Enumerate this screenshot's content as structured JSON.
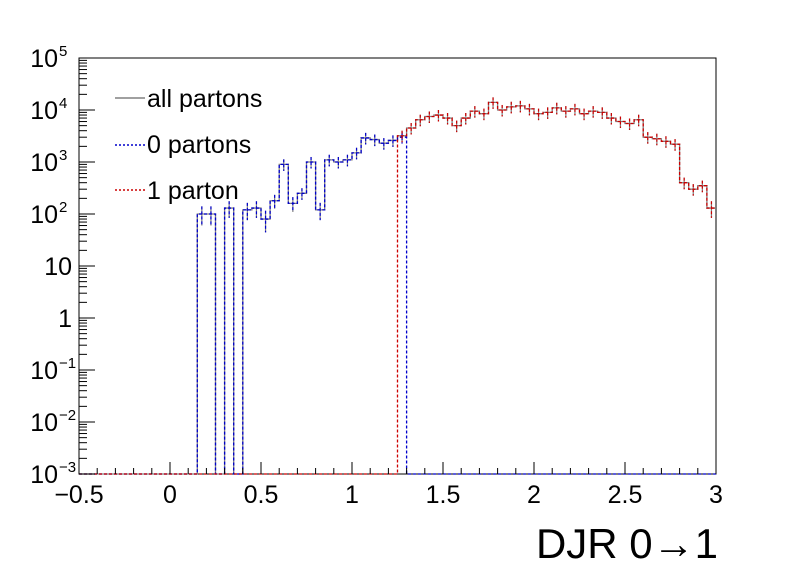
{
  "chart_data": {
    "type": "histogram",
    "xlabel": "DJR 0→1",
    "ylabel": "",
    "xlim": [
      -0.5,
      3.0
    ],
    "ylim": [
      0.001,
      100000
    ],
    "yscale": "log",
    "bin_width": 0.05,
    "floor_value": 0.001,
    "x_ticks": [
      "−0.5",
      "0",
      "0.5",
      "1",
      "1.5",
      "2",
      "2.5",
      "3"
    ],
    "x_tick_values": [
      -0.5,
      0,
      0.5,
      1,
      1.5,
      2,
      2.5,
      3
    ],
    "y_ticks": [
      {
        "value": 100000,
        "base": "10",
        "exp": "5"
      },
      {
        "value": 10000,
        "base": "10",
        "exp": "4"
      },
      {
        "value": 1000,
        "base": "10",
        "exp": "3"
      },
      {
        "value": 100,
        "base": "10",
        "exp": "2"
      },
      {
        "value": 10,
        "base": "10",
        "exp": ""
      },
      {
        "value": 1,
        "base": "1",
        "exp": ""
      },
      {
        "value": 0.1,
        "base": "10",
        "exp": "−1"
      },
      {
        "value": 0.01,
        "base": "10",
        "exp": "−2"
      },
      {
        "value": 0.001,
        "base": "10",
        "exp": "−3"
      }
    ],
    "grid": false,
    "legend_position": "top-left",
    "series": [
      {
        "name": "all partons",
        "color": "#808080",
        "style": "solid",
        "bins": [
          [
            0.15,
            100
          ],
          [
            0.2,
            100
          ],
          [
            0.3,
            130
          ],
          [
            0.4,
            120
          ],
          [
            0.45,
            130
          ],
          [
            0.5,
            80
          ],
          [
            0.55,
            180
          ],
          [
            0.6,
            900
          ],
          [
            0.65,
            160
          ],
          [
            0.7,
            250
          ],
          [
            0.75,
            1000
          ],
          [
            0.8,
            120
          ],
          [
            0.85,
            1100
          ],
          [
            0.9,
            1000
          ],
          [
            0.95,
            1100
          ],
          [
            1.0,
            1500
          ],
          [
            1.05,
            2900
          ],
          [
            1.1,
            2700
          ],
          [
            1.15,
            2300
          ],
          [
            1.2,
            2600
          ],
          [
            1.25,
            3200
          ],
          [
            1.3,
            4500
          ],
          [
            1.35,
            6500
          ],
          [
            1.4,
            7500
          ],
          [
            1.45,
            8000
          ],
          [
            1.5,
            7000
          ],
          [
            1.55,
            5000
          ],
          [
            1.6,
            7000
          ],
          [
            1.65,
            9500
          ],
          [
            1.7,
            8500
          ],
          [
            1.75,
            14000
          ],
          [
            1.8,
            10000
          ],
          [
            1.85,
            11500
          ],
          [
            1.9,
            12000
          ],
          [
            1.95,
            10500
          ],
          [
            2.0,
            8500
          ],
          [
            2.05,
            9000
          ],
          [
            2.1,
            11000
          ],
          [
            2.15,
            9500
          ],
          [
            2.2,
            10500
          ],
          [
            2.25,
            8500
          ],
          [
            2.3,
            9500
          ],
          [
            2.35,
            9000
          ],
          [
            2.4,
            7000
          ],
          [
            2.45,
            6000
          ],
          [
            2.5,
            5500
          ],
          [
            2.55,
            6500
          ],
          [
            2.6,
            3000
          ],
          [
            2.65,
            2800
          ],
          [
            2.7,
            2500
          ],
          [
            2.75,
            2200
          ],
          [
            2.8,
            400
          ],
          [
            2.85,
            300
          ],
          [
            2.9,
            350
          ],
          [
            2.95,
            130
          ]
        ]
      },
      {
        "name": "0 partons",
        "color": "#0000cc",
        "style": "dashed",
        "bins": [
          [
            0.15,
            100
          ],
          [
            0.2,
            100
          ],
          [
            0.3,
            130
          ],
          [
            0.4,
            120
          ],
          [
            0.45,
            130
          ],
          [
            0.5,
            80
          ],
          [
            0.55,
            180
          ],
          [
            0.6,
            900
          ],
          [
            0.65,
            160
          ],
          [
            0.7,
            250
          ],
          [
            0.75,
            1000
          ],
          [
            0.8,
            120
          ],
          [
            0.85,
            1100
          ],
          [
            0.9,
            1000
          ],
          [
            0.95,
            1100
          ],
          [
            1.0,
            1500
          ],
          [
            1.05,
            2900
          ],
          [
            1.1,
            2700
          ],
          [
            1.15,
            2300
          ],
          [
            1.2,
            2600
          ],
          [
            1.25,
            3000
          ]
        ]
      },
      {
        "name": "1 parton",
        "color": "#cc0000",
        "style": "dashed",
        "bins": [
          [
            1.25,
            3200
          ],
          [
            1.3,
            4500
          ],
          [
            1.35,
            6500
          ],
          [
            1.4,
            7500
          ],
          [
            1.45,
            8000
          ],
          [
            1.5,
            7000
          ],
          [
            1.55,
            5000
          ],
          [
            1.6,
            7000
          ],
          [
            1.65,
            9500
          ],
          [
            1.7,
            8500
          ],
          [
            1.75,
            14000
          ],
          [
            1.8,
            10000
          ],
          [
            1.85,
            11500
          ],
          [
            1.9,
            12000
          ],
          [
            1.95,
            10500
          ],
          [
            2.0,
            8500
          ],
          [
            2.05,
            9000
          ],
          [
            2.1,
            11000
          ],
          [
            2.15,
            9500
          ],
          [
            2.2,
            10500
          ],
          [
            2.25,
            8500
          ],
          [
            2.3,
            9500
          ],
          [
            2.35,
            9000
          ],
          [
            2.4,
            7000
          ],
          [
            2.45,
            6000
          ],
          [
            2.5,
            5500
          ],
          [
            2.55,
            6500
          ],
          [
            2.6,
            3000
          ],
          [
            2.65,
            2800
          ],
          [
            2.7,
            2500
          ],
          [
            2.75,
            2200
          ],
          [
            2.8,
            400
          ],
          [
            2.85,
            300
          ],
          [
            2.9,
            350
          ],
          [
            2.95,
            130
          ]
        ]
      }
    ]
  }
}
